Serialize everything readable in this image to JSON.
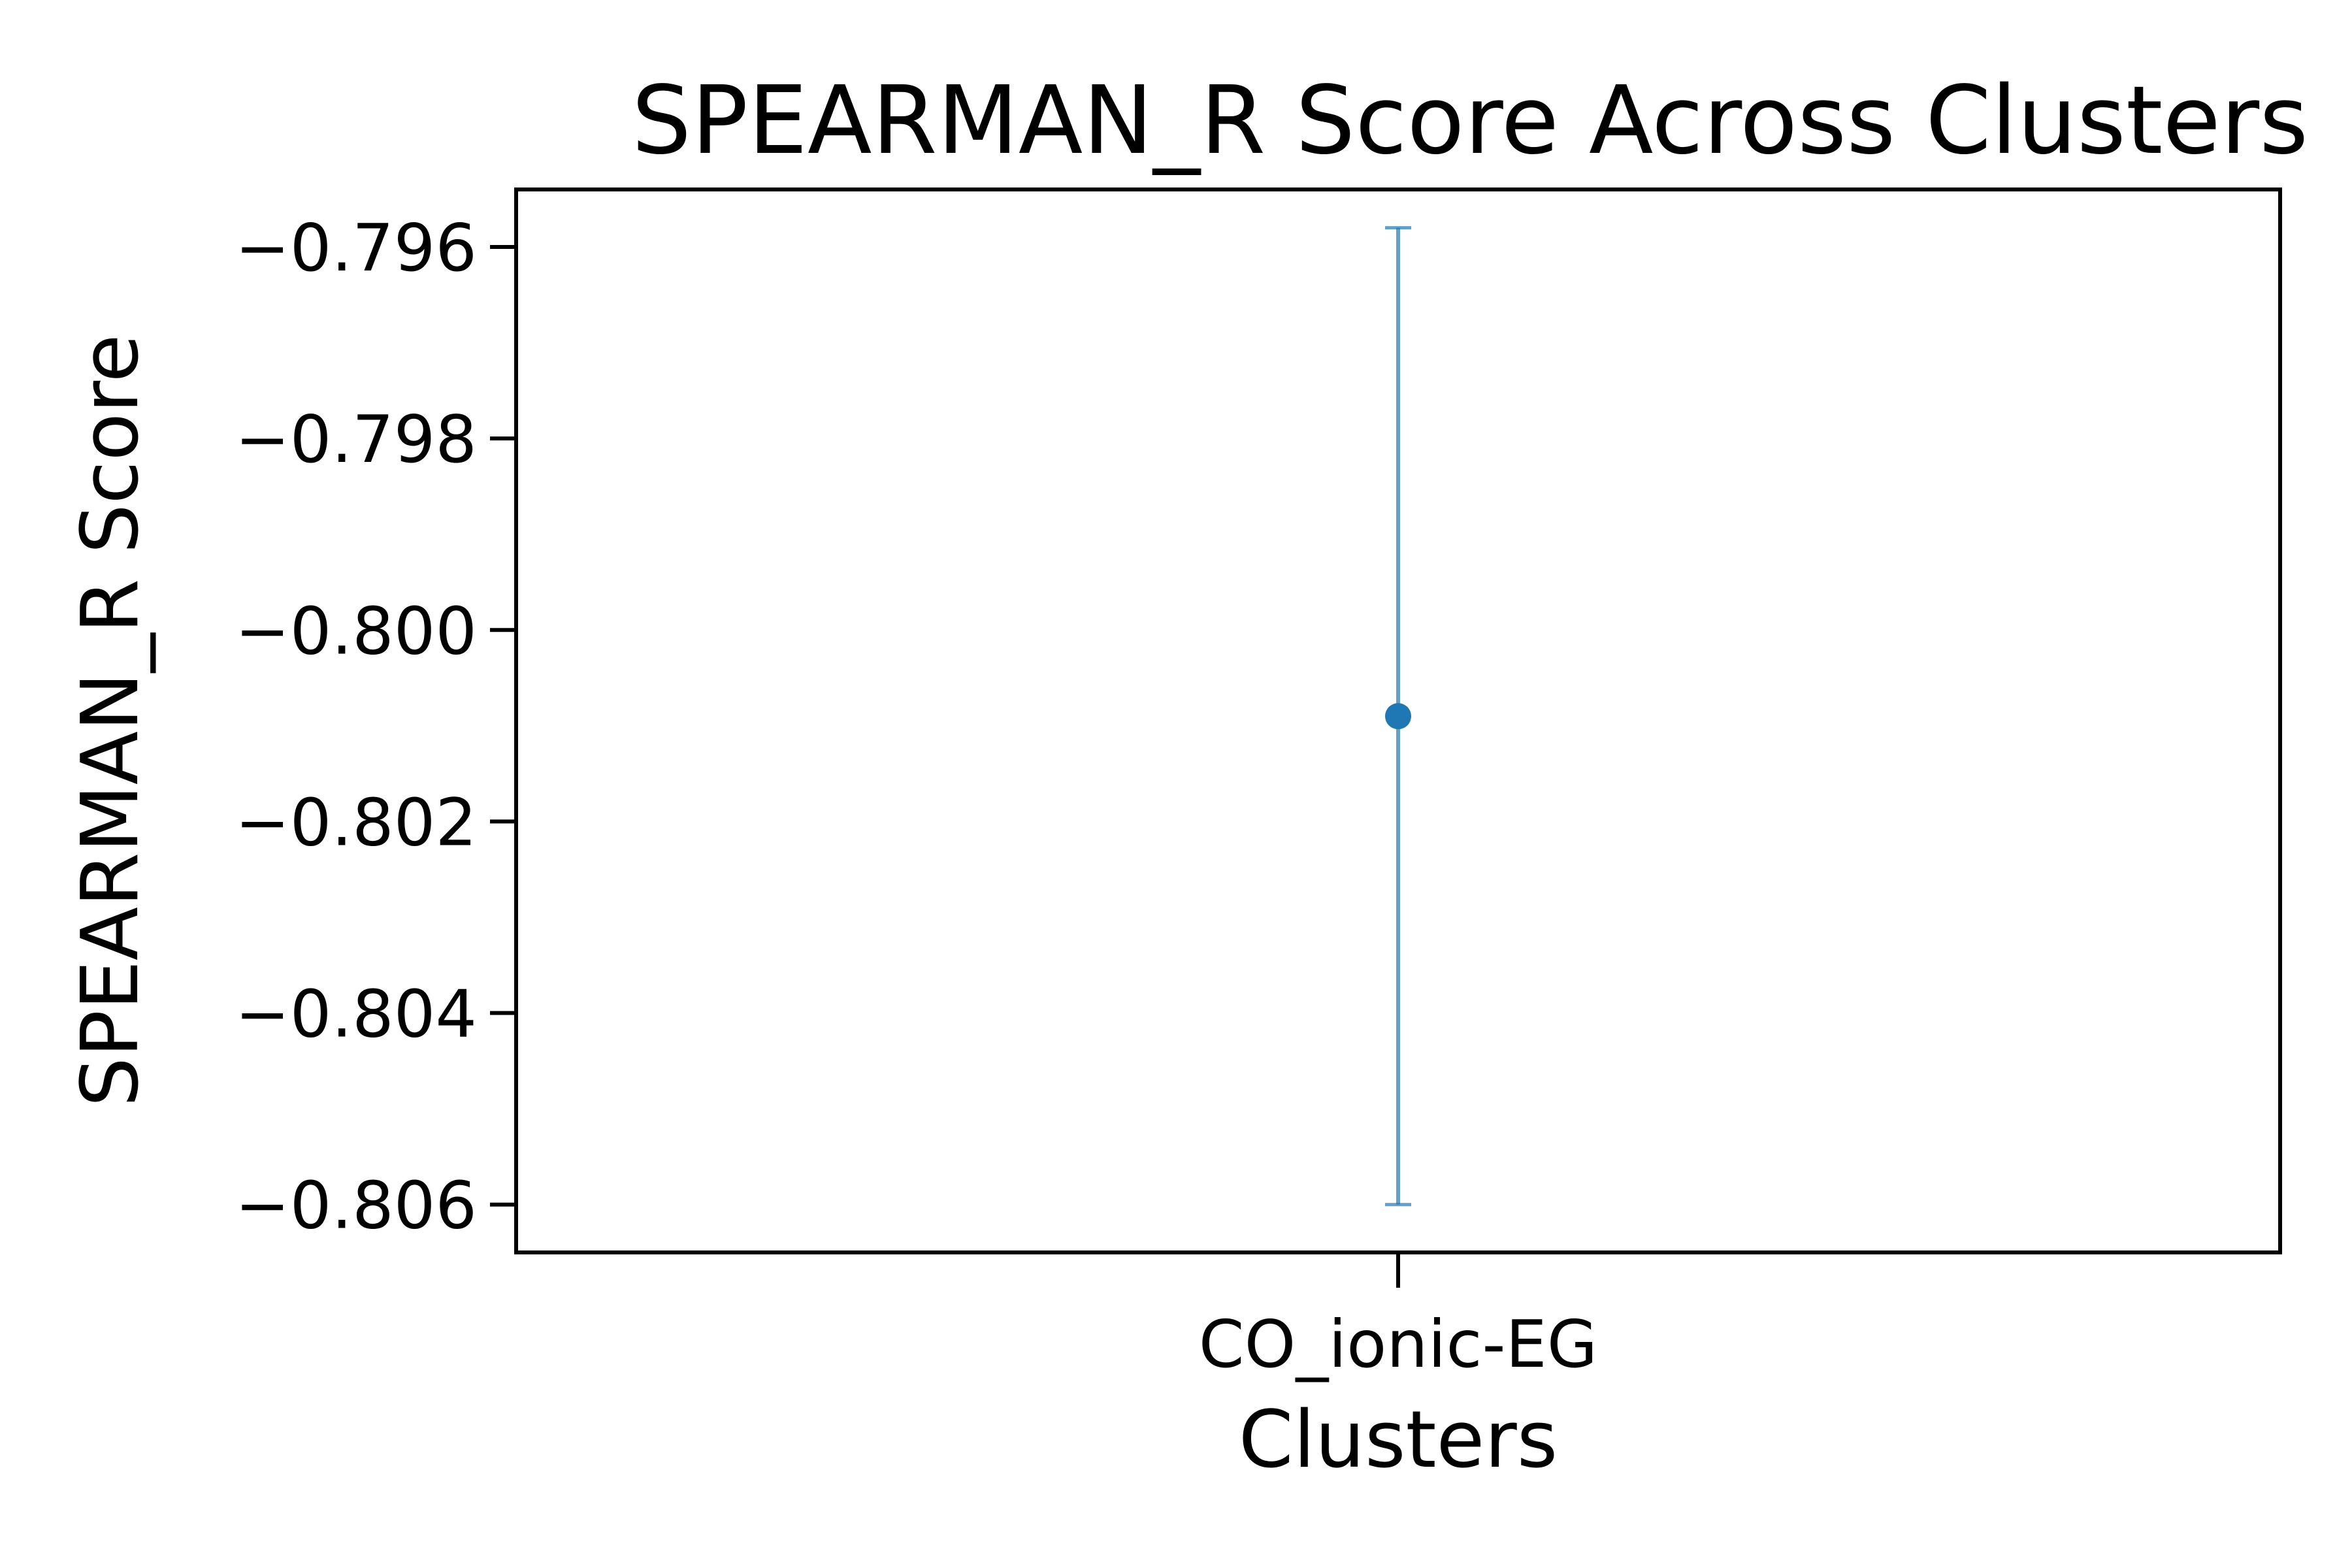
{
  "chart_data": {
    "type": "scatter",
    "title": "SPEARMAN_R Score Across Clusters",
    "xlabel": "Clusters",
    "ylabel": "SPEARMAN_R Score",
    "categories": [
      "CO_ionic-EG"
    ],
    "series": [
      {
        "values": [
          -0.8009
        ],
        "error_low": [
          -0.806
        ],
        "error_high": [
          -0.7958
        ],
        "color": "#1f77b4"
      }
    ],
    "y_ticks": [
      -0.796,
      -0.798,
      -0.8,
      -0.802,
      -0.804,
      -0.806
    ],
    "y_tick_labels": [
      "−0.796",
      "−0.798",
      "−0.800",
      "−0.802",
      "−0.804",
      "−0.806"
    ],
    "ylim": [
      -0.8065,
      -0.7954
    ],
    "grid": false,
    "legend": "none"
  }
}
